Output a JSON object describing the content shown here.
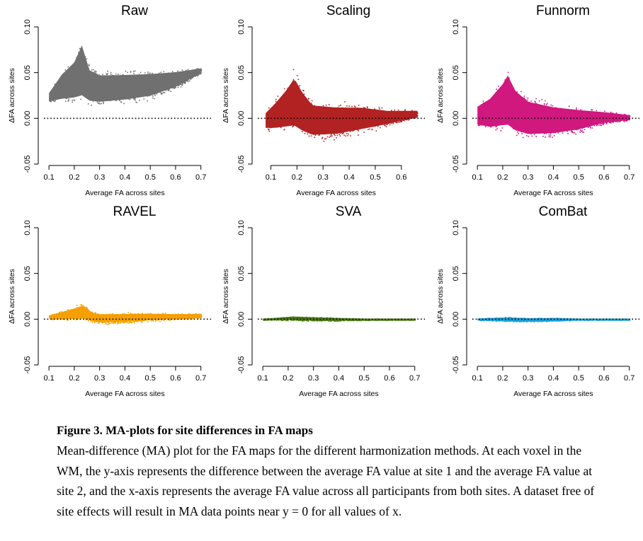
{
  "chart_data": [
    {
      "type": "scatter",
      "title": "Raw",
      "xlabel": "Average FA across sites",
      "ylabel": "ΔFA across sites",
      "xlim": [
        0.08,
        0.74
      ],
      "ylim": [
        -0.05,
        0.1
      ],
      "xticks": [
        "0.1",
        "0.2",
        "0.3",
        "0.4",
        "0.5",
        "0.6",
        "0.7"
      ],
      "yticks": [
        "-0.05",
        "0.00",
        "0.05",
        "0.10"
      ],
      "color": "#707070",
      "reference_line": 0,
      "envelope": [
        {
          "x": 0.1,
          "lo": 0.016,
          "hi": 0.03
        },
        {
          "x": 0.15,
          "lo": 0.014,
          "hi": 0.055
        },
        {
          "x": 0.2,
          "lo": 0.012,
          "hi": 0.072
        },
        {
          "x": 0.23,
          "lo": 0.01,
          "hi": 0.095
        },
        {
          "x": 0.26,
          "lo": 0.01,
          "hi": 0.062
        },
        {
          "x": 0.3,
          "lo": 0.01,
          "hi": 0.055
        },
        {
          "x": 0.4,
          "lo": 0.013,
          "hi": 0.055
        },
        {
          "x": 0.5,
          "lo": 0.018,
          "hi": 0.055
        },
        {
          "x": 0.6,
          "lo": 0.03,
          "hi": 0.055
        },
        {
          "x": 0.7,
          "lo": 0.048,
          "hi": 0.056
        }
      ]
    },
    {
      "type": "scatter",
      "title": "Scaling",
      "xlabel": "Average FA across sites",
      "ylabel": "ΔFA across sites",
      "xlim": [
        0.05,
        0.69
      ],
      "ylim": [
        -0.05,
        0.1
      ],
      "xticks": [
        "0.1",
        "0.2",
        "0.3",
        "0.4",
        "0.5",
        "0.6"
      ],
      "yticks": [
        "-0.05",
        "0.00",
        "0.05",
        "0.10"
      ],
      "color": "#b22222",
      "reference_line": 0,
      "envelope": [
        {
          "x": 0.08,
          "lo": -0.015,
          "hi": 0.01
        },
        {
          "x": 0.12,
          "lo": -0.018,
          "hi": 0.025
        },
        {
          "x": 0.16,
          "lo": -0.02,
          "hi": 0.042
        },
        {
          "x": 0.19,
          "lo": -0.022,
          "hi": 0.058
        },
        {
          "x": 0.22,
          "lo": -0.025,
          "hi": 0.04
        },
        {
          "x": 0.26,
          "lo": -0.027,
          "hi": 0.023
        },
        {
          "x": 0.35,
          "lo": -0.025,
          "hi": 0.02
        },
        {
          "x": 0.45,
          "lo": -0.018,
          "hi": 0.018
        },
        {
          "x": 0.55,
          "lo": -0.01,
          "hi": 0.012
        },
        {
          "x": 0.66,
          "lo": 0.0,
          "hi": 0.01
        }
      ]
    },
    {
      "type": "scatter",
      "title": "Funnorm",
      "xlabel": "Average FA across sites",
      "ylabel": "ΔFA across sites",
      "xlim": [
        0.08,
        0.74
      ],
      "ylim": [
        -0.05,
        0.1
      ],
      "xticks": [
        "0.1",
        "0.2",
        "0.3",
        "0.4",
        "0.5",
        "0.6",
        "0.7"
      ],
      "yticks": [
        "-0.05",
        "0.00",
        "0.05",
        "0.10"
      ],
      "color": "#d0187f",
      "reference_line": 0,
      "envelope": [
        {
          "x": 0.1,
          "lo": -0.012,
          "hi": 0.018
        },
        {
          "x": 0.15,
          "lo": -0.018,
          "hi": 0.03
        },
        {
          "x": 0.2,
          "lo": -0.02,
          "hi": 0.05
        },
        {
          "x": 0.22,
          "lo": -0.022,
          "hi": 0.062
        },
        {
          "x": 0.25,
          "lo": -0.025,
          "hi": 0.042
        },
        {
          "x": 0.3,
          "lo": -0.027,
          "hi": 0.028
        },
        {
          "x": 0.4,
          "lo": -0.024,
          "hi": 0.02
        },
        {
          "x": 0.5,
          "lo": -0.018,
          "hi": 0.015
        },
        {
          "x": 0.6,
          "lo": -0.008,
          "hi": 0.01
        },
        {
          "x": 0.7,
          "lo": -0.003,
          "hi": 0.005
        }
      ]
    },
    {
      "type": "scatter",
      "title": "RAVEL",
      "xlabel": "Average FA across sites",
      "ylabel": "ΔFA across sites",
      "xlim": [
        0.08,
        0.74
      ],
      "ylim": [
        -0.05,
        0.1
      ],
      "xticks": [
        "0.1",
        "0.2",
        "0.3",
        "0.4",
        "0.5",
        "0.6",
        "0.7"
      ],
      "yticks": [
        "-0.05",
        "0.00",
        "0.05",
        "0.10"
      ],
      "color": "#f5a000",
      "reference_line": 0,
      "envelope": [
        {
          "x": 0.1,
          "lo": 0.0,
          "hi": 0.005
        },
        {
          "x": 0.15,
          "lo": -0.002,
          "hi": 0.01
        },
        {
          "x": 0.2,
          "lo": -0.003,
          "hi": 0.015
        },
        {
          "x": 0.235,
          "lo": -0.003,
          "hi": 0.019
        },
        {
          "x": 0.27,
          "lo": -0.005,
          "hi": 0.01
        },
        {
          "x": 0.3,
          "lo": -0.006,
          "hi": 0.008
        },
        {
          "x": 0.4,
          "lo": -0.005,
          "hi": 0.008
        },
        {
          "x": 0.5,
          "lo": -0.003,
          "hi": 0.008
        },
        {
          "x": 0.6,
          "lo": -0.001,
          "hi": 0.007
        },
        {
          "x": 0.7,
          "lo": 0.001,
          "hi": 0.007
        }
      ]
    },
    {
      "type": "scatter",
      "title": "SVA",
      "xlabel": "Average FA across sites",
      "ylabel": "ΔFA across sites",
      "xlim": [
        0.08,
        0.74
      ],
      "ylim": [
        -0.05,
        0.1
      ],
      "xticks": [
        "0.1",
        "0.2",
        "0.3",
        "0.4",
        "0.5",
        "0.6",
        "0.7"
      ],
      "yticks": [
        "-0.05",
        "0.00",
        "0.05",
        "0.10"
      ],
      "color": "#4a7a10",
      "reference_line": 0,
      "envelope": [
        {
          "x": 0.1,
          "lo": -0.001,
          "hi": 0.001
        },
        {
          "x": 0.15,
          "lo": -0.001,
          "hi": 0.002
        },
        {
          "x": 0.22,
          "lo": -0.002,
          "hi": 0.004
        },
        {
          "x": 0.3,
          "lo": -0.002,
          "hi": 0.003
        },
        {
          "x": 0.4,
          "lo": -0.002,
          "hi": 0.002
        },
        {
          "x": 0.5,
          "lo": -0.001,
          "hi": 0.001
        },
        {
          "x": 0.6,
          "lo": -0.001,
          "hi": 0.001
        },
        {
          "x": 0.7,
          "lo": -0.001,
          "hi": 0.001
        }
      ]
    },
    {
      "type": "scatter",
      "title": "ComBat",
      "xlabel": "Average FA across sites",
      "ylabel": "ΔFA across sites",
      "xlim": [
        0.08,
        0.74
      ],
      "ylim": [
        -0.05,
        0.1
      ],
      "xticks": [
        "0.1",
        "0.2",
        "0.3",
        "0.4",
        "0.5",
        "0.6",
        "0.7"
      ],
      "yticks": [
        "-0.05",
        "0.00",
        "0.05",
        "0.10"
      ],
      "color": "#1a9ed6",
      "reference_line": 0,
      "envelope": [
        {
          "x": 0.1,
          "lo": -0.001,
          "hi": 0.001
        },
        {
          "x": 0.15,
          "lo": -0.002,
          "hi": 0.002
        },
        {
          "x": 0.22,
          "lo": -0.003,
          "hi": 0.003
        },
        {
          "x": 0.3,
          "lo": -0.003,
          "hi": 0.002
        },
        {
          "x": 0.4,
          "lo": -0.002,
          "hi": 0.002
        },
        {
          "x": 0.5,
          "lo": -0.001,
          "hi": 0.001
        },
        {
          "x": 0.6,
          "lo": -0.001,
          "hi": 0.001
        },
        {
          "x": 0.7,
          "lo": -0.001,
          "hi": 0.001
        }
      ]
    }
  ],
  "caption": {
    "title": "Figure 3. MA-plots for site differences in FA maps",
    "body": "Mean-difference (MA) plot for the FA maps for the different harmonization methods. At each voxel in the WM, the y-axis represents the difference between the average FA value at site 1 and the average FA value at site 2, and the x-axis represents the average FA value across all participants from both sites. A dataset free of site effects will result in MA data points near y = 0 for all values of x."
  }
}
